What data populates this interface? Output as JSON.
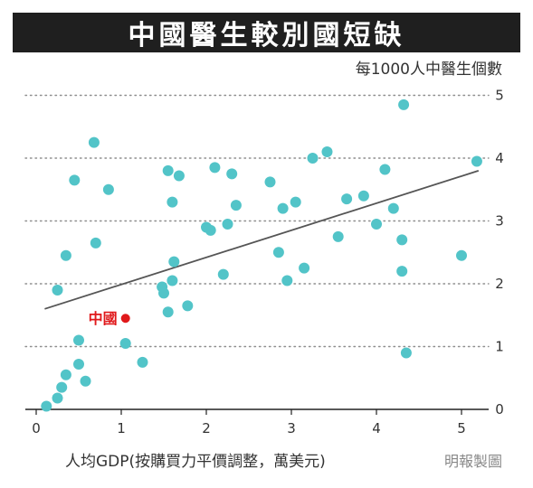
{
  "chart_data": {
    "type": "scatter",
    "title": "中國醫生較別國短缺",
    "ylabel": "每1000人中醫生個數",
    "xlabel": "人均GDP(按購買力平價調整，萬美元)",
    "credit": "明報製圖",
    "xlim": [
      0,
      5.3
    ],
    "ylim": [
      0,
      5
    ],
    "xticks": [
      0,
      1,
      2,
      3,
      4,
      5
    ],
    "yticks": [
      0,
      1,
      2,
      3,
      4,
      5
    ],
    "grid": "horizontal-dotted",
    "colors": {
      "points": "#52c4c8",
      "trend": "#555555",
      "highlight": "#e0191b",
      "grid": "#8e8e8e"
    },
    "trendline": {
      "x": [
        0.1,
        5.2
      ],
      "y": [
        1.6,
        3.8
      ]
    },
    "highlight": {
      "label": "中國",
      "x": 1.05,
      "y": 1.45
    },
    "points": [
      {
        "x": 0.12,
        "y": 0.05
      },
      {
        "x": 0.25,
        "y": 0.18
      },
      {
        "x": 0.3,
        "y": 0.35
      },
      {
        "x": 0.35,
        "y": 0.55
      },
      {
        "x": 0.5,
        "y": 0.72
      },
      {
        "x": 0.58,
        "y": 0.45
      },
      {
        "x": 0.5,
        "y": 1.1
      },
      {
        "x": 0.25,
        "y": 1.9
      },
      {
        "x": 0.35,
        "y": 2.45
      },
      {
        "x": 0.45,
        "y": 3.65
      },
      {
        "x": 0.68,
        "y": 4.25
      },
      {
        "x": 0.7,
        "y": 2.65
      },
      {
        "x": 0.85,
        "y": 3.5
      },
      {
        "x": 1.05,
        "y": 1.05
      },
      {
        "x": 1.25,
        "y": 0.75
      },
      {
        "x": 1.48,
        "y": 1.95
      },
      {
        "x": 1.5,
        "y": 1.85
      },
      {
        "x": 1.55,
        "y": 1.55
      },
      {
        "x": 1.6,
        "y": 2.05
      },
      {
        "x": 1.62,
        "y": 2.35
      },
      {
        "x": 1.6,
        "y": 3.3
      },
      {
        "x": 1.55,
        "y": 3.8
      },
      {
        "x": 1.68,
        "y": 3.72
      },
      {
        "x": 1.78,
        "y": 1.65
      },
      {
        "x": 2.0,
        "y": 2.9
      },
      {
        "x": 2.05,
        "y": 2.85
      },
      {
        "x": 2.1,
        "y": 3.85
      },
      {
        "x": 2.2,
        "y": 2.15
      },
      {
        "x": 2.25,
        "y": 2.95
      },
      {
        "x": 2.3,
        "y": 3.75
      },
      {
        "x": 2.35,
        "y": 3.25
      },
      {
        "x": 2.75,
        "y": 3.62
      },
      {
        "x": 2.85,
        "y": 2.5
      },
      {
        "x": 2.9,
        "y": 3.2
      },
      {
        "x": 2.95,
        "y": 2.05
      },
      {
        "x": 3.05,
        "y": 3.3
      },
      {
        "x": 3.15,
        "y": 2.25
      },
      {
        "x": 3.25,
        "y": 4.0
      },
      {
        "x": 3.42,
        "y": 4.1
      },
      {
        "x": 3.55,
        "y": 2.75
      },
      {
        "x": 3.65,
        "y": 3.35
      },
      {
        "x": 3.85,
        "y": 3.4
      },
      {
        "x": 4.0,
        "y": 2.95
      },
      {
        "x": 4.1,
        "y": 3.82
      },
      {
        "x": 4.2,
        "y": 3.2
      },
      {
        "x": 4.3,
        "y": 2.7
      },
      {
        "x": 4.3,
        "y": 2.2
      },
      {
        "x": 4.32,
        "y": 4.85
      },
      {
        "x": 4.35,
        "y": 0.9
      },
      {
        "x": 5.0,
        "y": 2.45
      },
      {
        "x": 5.18,
        "y": 3.95
      }
    ]
  }
}
